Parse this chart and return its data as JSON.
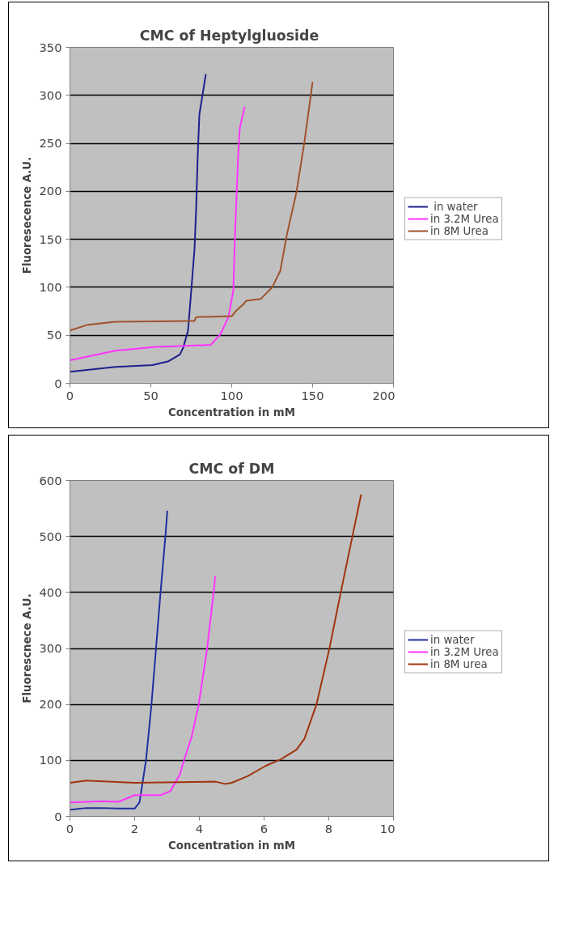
{
  "chart_data": [
    {
      "type": "line",
      "title": "CMC  of Heptylgluoside",
      "xlabel": "Concentration in mM",
      "ylabel": "Fluoresecence A.U.",
      "xlim": [
        0,
        200
      ],
      "xticks": [
        0,
        50,
        100,
        150,
        200
      ],
      "ylim": [
        0,
        350
      ],
      "yticks": [
        0,
        50,
        100,
        150,
        200,
        250,
        300,
        350
      ],
      "grid": "y",
      "legend": "right",
      "marker": "none",
      "line_style": "solid",
      "series": [
        {
          "name": " in water",
          "color": "#1f1f8f",
          "x": [
            0,
            28,
            51,
            61,
            68,
            70,
            73,
            75,
            77,
            78,
            79,
            80,
            84
          ],
          "values": [
            12,
            17,
            19,
            23,
            30,
            37,
            55,
            97,
            140,
            182,
            238,
            280,
            322
          ]
        },
        {
          "name": "in 3.2M Urea",
          "color": "#ff33ff",
          "x": [
            0,
            28,
            53,
            87,
            93,
            98,
            101,
            102,
            104,
            105,
            108
          ],
          "values": [
            24,
            34,
            38,
            40,
            51,
            69,
            97,
            154,
            238,
            266,
            288
          ]
        },
        {
          "name": "in 8M Urea",
          "color": "#a0522d",
          "x": [
            0,
            11,
            28,
            75,
            77,
            78,
            100,
            103,
            105,
            107,
            109,
            118,
            125,
            130,
            134,
            140,
            145,
            150
          ],
          "values": [
            55,
            61,
            64,
            65,
            65,
            69,
            70,
            76,
            79,
            82,
            86,
            88,
            100,
            117,
            154,
            199,
            252,
            314
          ]
        }
      ]
    },
    {
      "type": "line",
      "title": "CMC of DM",
      "xlabel": "Concentration in mM",
      "ylabel": "Fluorescnece A.U.",
      "xlim": [
        0,
        10
      ],
      "xticks": [
        0,
        2,
        4,
        6,
        8,
        10
      ],
      "ylim": [
        0,
        600
      ],
      "yticks": [
        0,
        100,
        200,
        300,
        400,
        500,
        600
      ],
      "grid": "y",
      "legend": "right",
      "marker": "none",
      "line_style": "solid",
      "series": [
        {
          "name": "in water",
          "color": "#1f2f9f",
          "x": [
            0,
            0.5,
            1.0,
            1.5,
            2.0,
            2.15,
            2.35,
            2.52,
            2.66,
            2.8,
            2.95,
            3.01
          ],
          "values": [
            12,
            15,
            15,
            14,
            14,
            25,
            100,
            200,
            300,
            400,
            500,
            546
          ]
        },
        {
          "name": "in 3.2M Urea",
          "color": "#ff33ff",
          "x": [
            0,
            1.0,
            1.5,
            2.0,
            2.8,
            3.1,
            3.4,
            3.47,
            3.76,
            3.98,
            4.24,
            4.44,
            4.49
          ],
          "values": [
            25,
            27,
            26,
            38,
            38,
            45,
            75,
            90,
            142,
            200,
            300,
            400,
            429
          ]
        },
        {
          "name": "in 8M urea",
          "color": "#a0340f",
          "x": [
            0,
            0.5,
            2.0,
            4.5,
            4.8,
            5.0,
            5.5,
            6.04,
            6.52,
            7.0,
            7.25,
            7.62,
            8.02,
            8.37,
            8.73,
            9.0
          ],
          "values": [
            60,
            64,
            60,
            62,
            58,
            60,
            72,
            90,
            102,
            119,
            139,
            200,
            300,
            400,
            500,
            575
          ]
        }
      ]
    }
  ]
}
